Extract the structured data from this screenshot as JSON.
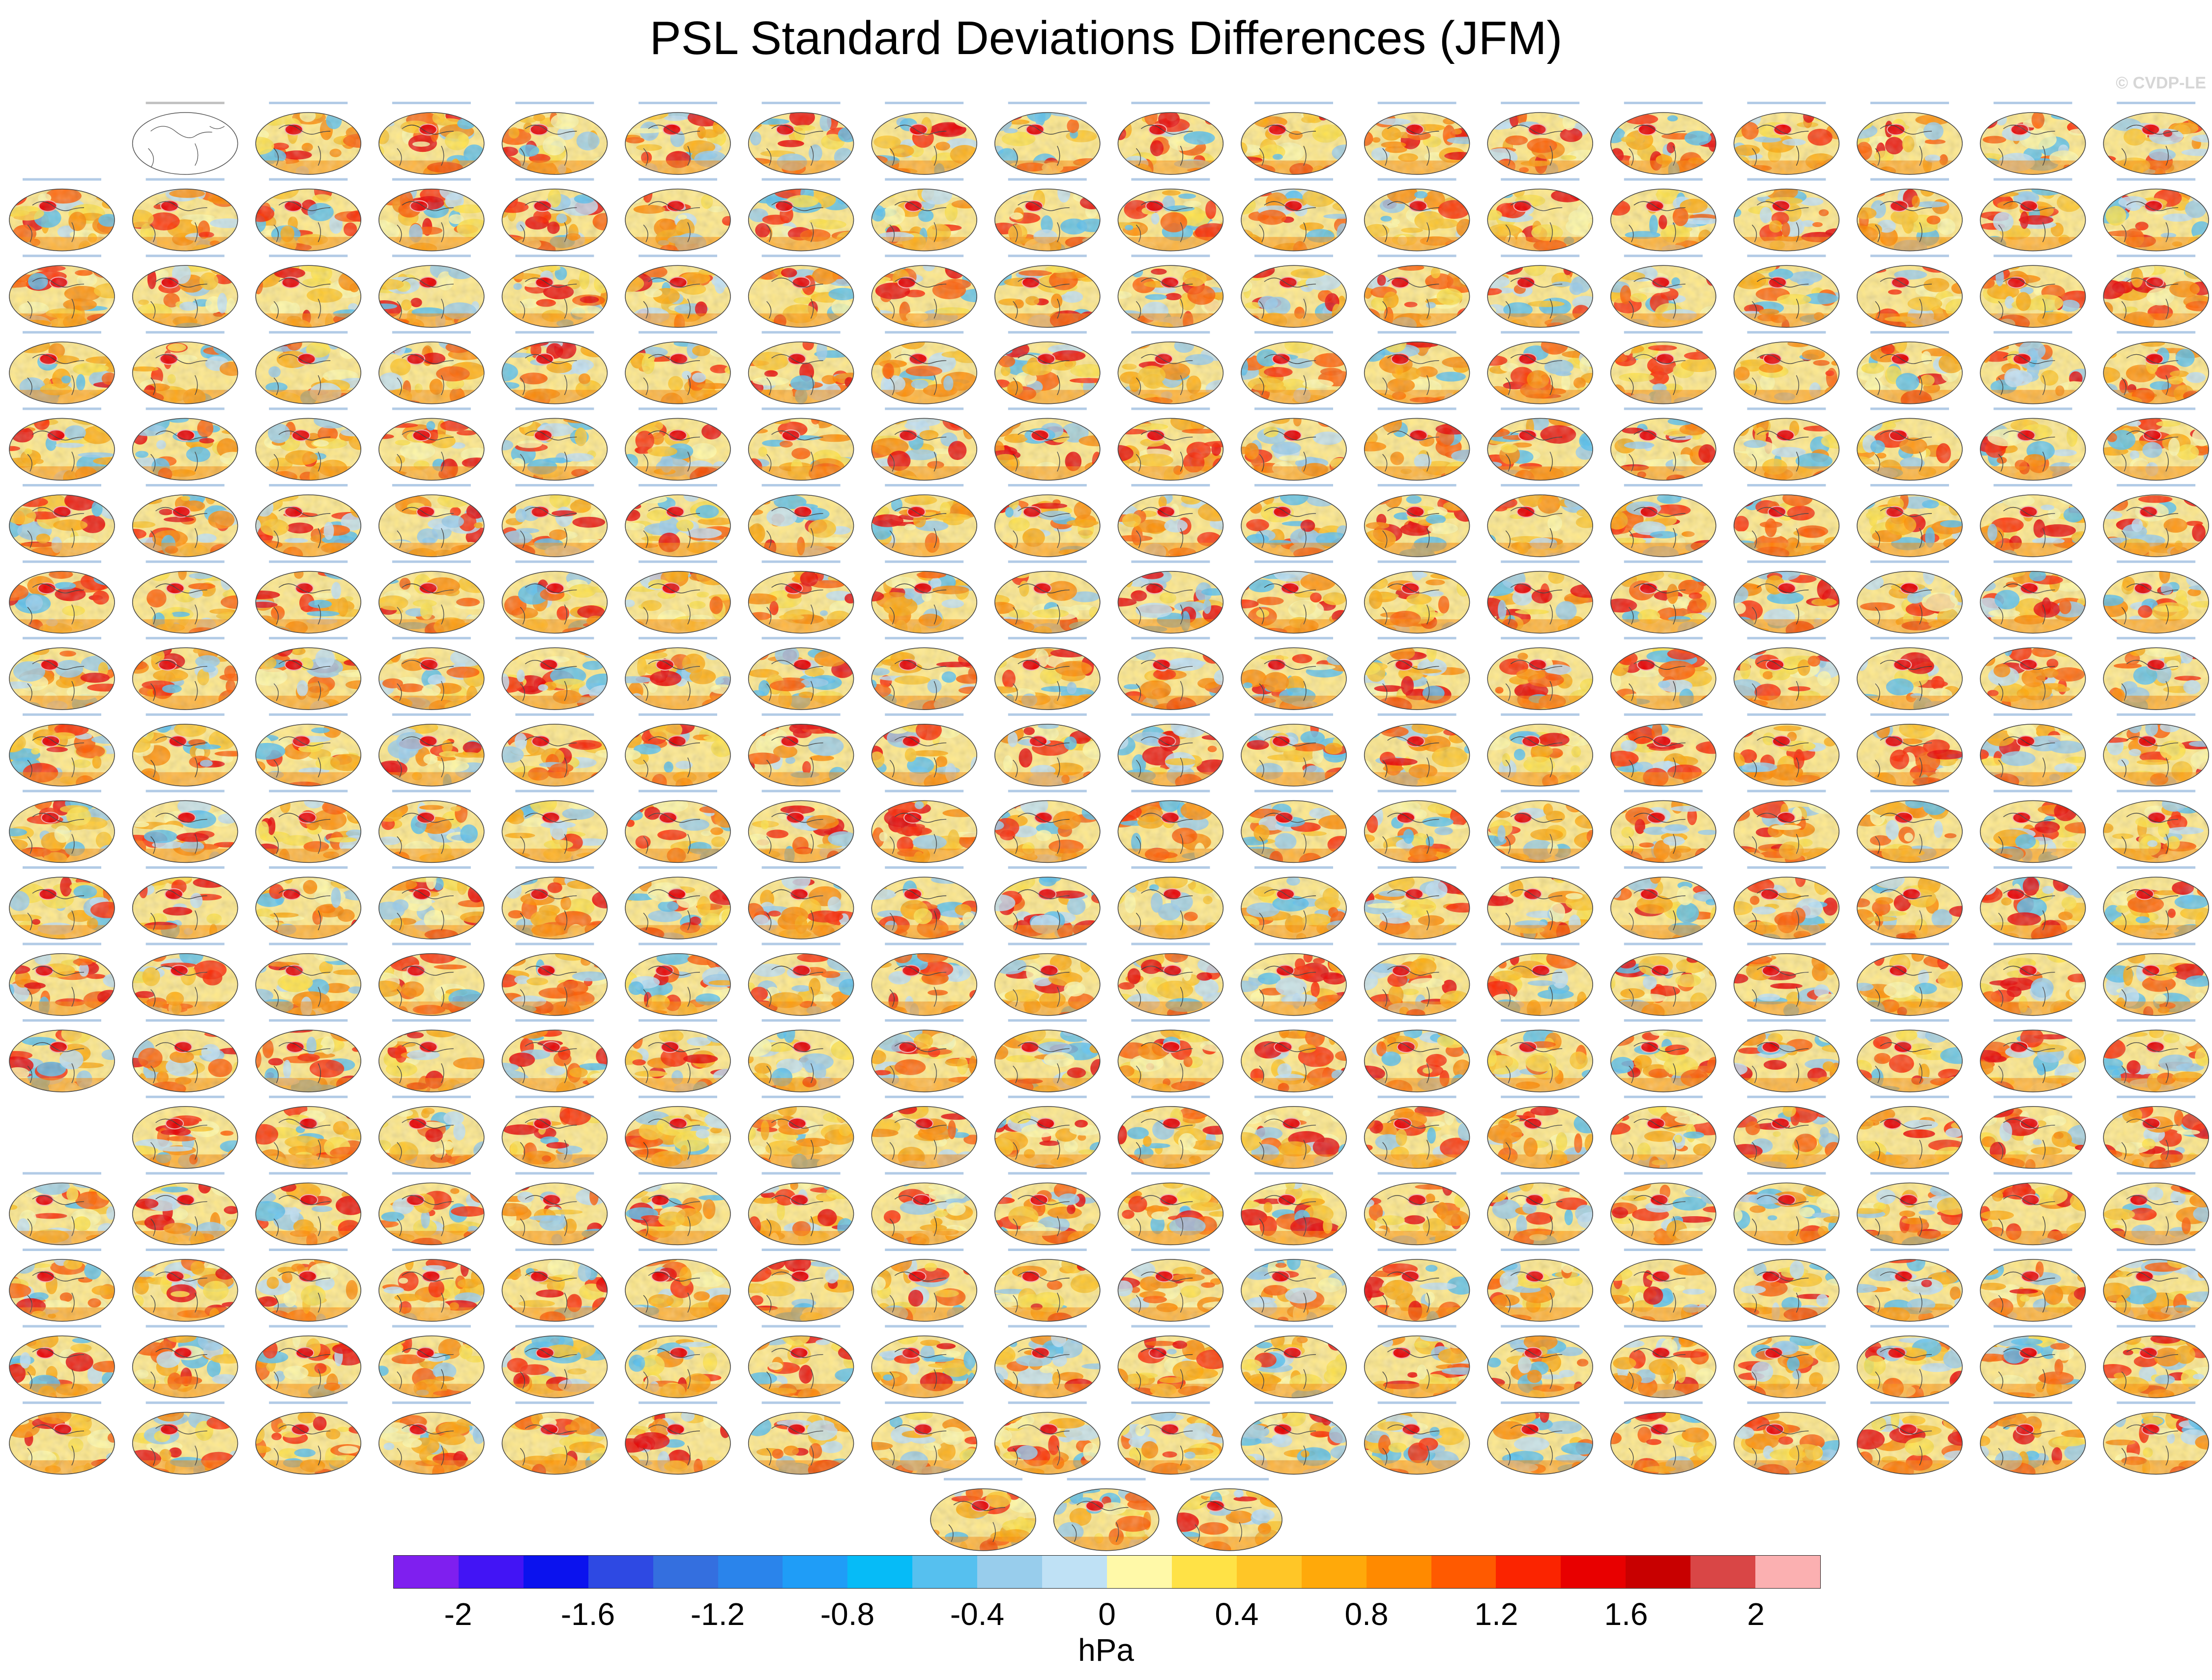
{
  "title": "PSL Standard Deviations Differences (JFM)",
  "watermark": "© CVDP-LE",
  "colorbar": {
    "units": "hPa",
    "colors": [
      "#7f1fef",
      "#4214f5",
      "#0b12ee",
      "#2e49e3",
      "#346fdf",
      "#2a84eb",
      "#1f9df7",
      "#06bbf7",
      "#56c0ef",
      "#98cdec",
      "#bfe1f5",
      "#fff9a8",
      "#ffe246",
      "#ffc627",
      "#ffa90a",
      "#ff8a00",
      "#ff5a00",
      "#fb2400",
      "#e80000",
      "#c80000",
      "#d94646",
      "#fbb0b1"
    ],
    "ticks": [
      "-2",
      "-1.6",
      "-1.2",
      "-0.8",
      "-0.4",
      "0",
      "0.4",
      "0.8",
      "1.2",
      "1.6",
      "2"
    ]
  },
  "panel_grid": {
    "columns": 18,
    "rows": [
      {
        "start": 1,
        "count": 17
      },
      {
        "start": 0,
        "count": 18
      },
      {
        "start": 0,
        "count": 18
      },
      {
        "start": 0,
        "count": 18
      },
      {
        "start": 0,
        "count": 18
      },
      {
        "start": 0,
        "count": 18
      },
      {
        "start": 0,
        "count": 18
      },
      {
        "start": 0,
        "count": 18
      },
      {
        "start": 0,
        "count": 18
      },
      {
        "start": 0,
        "count": 18
      },
      {
        "start": 0,
        "count": 18
      },
      {
        "start": 0,
        "count": 18
      },
      {
        "start": 0,
        "count": 18
      },
      {
        "start": 1,
        "count": 17
      },
      {
        "start": 0,
        "count": 18
      },
      {
        "start": 0,
        "count": 18
      },
      {
        "start": 0,
        "count": 18
      },
      {
        "start": 0,
        "count": 18
      }
    ],
    "bottom_row": {
      "count": 3
    }
  }
}
